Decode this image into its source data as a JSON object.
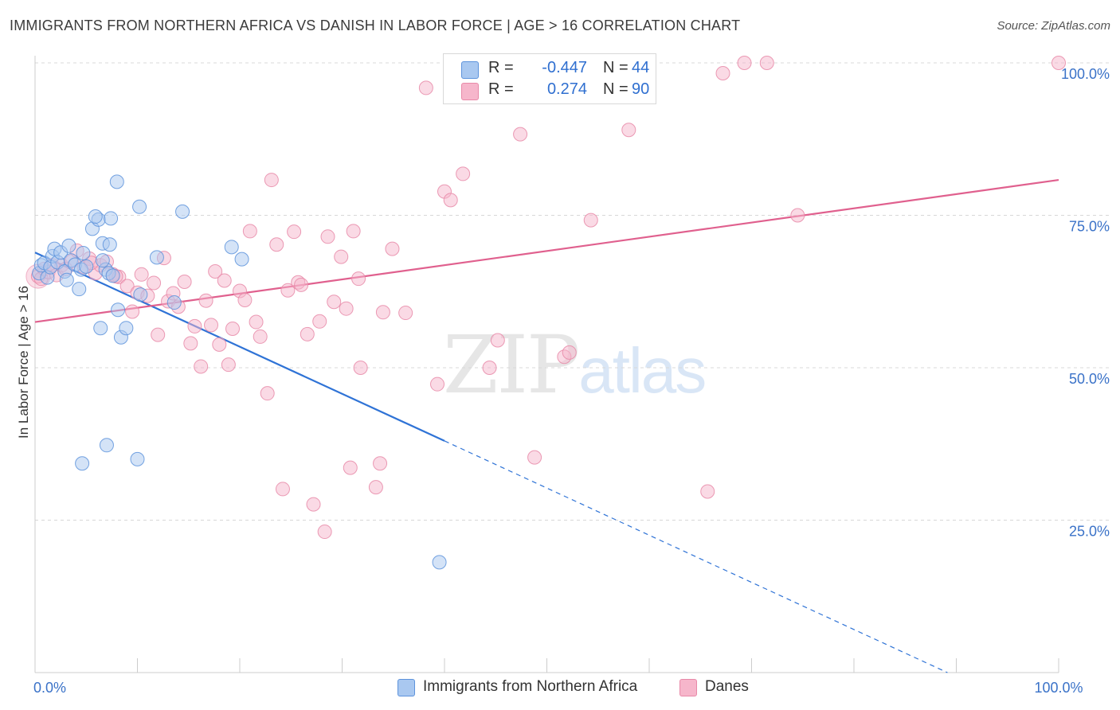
{
  "header": {
    "title": "IMMIGRANTS FROM NORTHERN AFRICA VS DANISH IN LABOR FORCE | AGE > 16 CORRELATION CHART",
    "source": "Source: ZipAtlas.com"
  },
  "watermark": {
    "zip": "ZIP",
    "atlas": "atlas"
  },
  "legend": {
    "rows": [
      {
        "r_label": "R =",
        "r_value": "-0.447",
        "n_label": "N =",
        "n_value": "44",
        "color": "#a9c8f0"
      },
      {
        "r_label": "R =",
        "r_value": "0.274",
        "n_label": "N =",
        "n_value": "90",
        "color": "#f6b6cb"
      }
    ],
    "bottom": [
      {
        "label": "Immigrants from Northern Africa",
        "color": "#a9c8f0"
      },
      {
        "label": "Danes",
        "color": "#f6b6cb"
      }
    ]
  },
  "colors": {
    "blue_fill": "#a9c8f0",
    "blue_stroke": "#5d93dc",
    "blue_line": "#2f73d6",
    "pink_fill": "#f6b6cb",
    "pink_stroke": "#e889a8",
    "pink_line": "#e0608e",
    "axis_label": "#3a72c8",
    "grid": "#d8d8d8"
  },
  "chart_data": {
    "type": "scatter",
    "ylabel": "In Labor Force | Age > 16",
    "xlabel": "",
    "xlim": [
      0,
      100
    ],
    "ylim": [
      0,
      103
    ],
    "x_tick_labels": [
      {
        "x": 0,
        "label": "0.0%"
      },
      {
        "x": 100,
        "label": "100.0%"
      }
    ],
    "y_tick_labels": [
      {
        "y": 25,
        "label": "25.0%"
      },
      {
        "y": 50,
        "label": "50.0%"
      },
      {
        "y": 75,
        "label": "75.0%"
      },
      {
        "y": 100,
        "label": "100.0%"
      }
    ],
    "grid": true,
    "series": [
      {
        "name": "Immigrants from Northern Africa",
        "color": "#a9c8f0",
        "points": [
          [
            0.4,
            65.5
          ],
          [
            0.6,
            66.8
          ],
          [
            0.9,
            67.2
          ],
          [
            1.2,
            64.8
          ],
          [
            1.5,
            66.5
          ],
          [
            1.7,
            68.3
          ],
          [
            1.9,
            69.5
          ],
          [
            2.2,
            67.3
          ],
          [
            2.5,
            68.9
          ],
          [
            2.9,
            65.8
          ],
          [
            3.1,
            64.4
          ],
          [
            3.3,
            70.0
          ],
          [
            3.5,
            67.6
          ],
          [
            3.9,
            66.9
          ],
          [
            4.3,
            62.9
          ],
          [
            4.5,
            66.1
          ],
          [
            4.7,
            68.8
          ],
          [
            5.0,
            66.6
          ],
          [
            5.6,
            72.8
          ],
          [
            4.6,
            34.3
          ],
          [
            6.2,
            74.3
          ],
          [
            5.9,
            74.8
          ],
          [
            6.4,
            56.5
          ],
          [
            6.6,
            70.4
          ],
          [
            6.9,
            66.1
          ],
          [
            7.4,
            74.5
          ],
          [
            7.0,
            37.3
          ],
          [
            8.0,
            80.5
          ],
          [
            7.2,
            65.5
          ],
          [
            7.6,
            65.1
          ],
          [
            8.1,
            59.5
          ],
          [
            8.4,
            55.0
          ],
          [
            8.9,
            56.5
          ],
          [
            7.3,
            70.2
          ],
          [
            10.0,
            35.0
          ],
          [
            10.3,
            62.0
          ],
          [
            10.2,
            76.4
          ],
          [
            11.9,
            68.1
          ],
          [
            13.6,
            60.7
          ],
          [
            14.4,
            75.6
          ],
          [
            19.2,
            69.8
          ],
          [
            20.2,
            67.8
          ],
          [
            39.5,
            18.1
          ],
          [
            6.6,
            67.6
          ]
        ]
      },
      {
        "name": "Danes",
        "color": "#f6b6cb",
        "points": [
          [
            0.3,
            65.0
          ],
          [
            0.6,
            64.6
          ],
          [
            0.9,
            66.2
          ],
          [
            1.3,
            65.7
          ],
          [
            1.7,
            66.8
          ],
          [
            2.1,
            65.2
          ],
          [
            2.6,
            66.8
          ],
          [
            3.0,
            66.2
          ],
          [
            3.6,
            67.5
          ],
          [
            4.1,
            69.2
          ],
          [
            4.8,
            66.5
          ],
          [
            5.3,
            67.9
          ],
          [
            5.9,
            65.5
          ],
          [
            6.4,
            66.8
          ],
          [
            7.0,
            67.4
          ],
          [
            7.6,
            65.3
          ],
          [
            8.2,
            64.9
          ],
          [
            9.0,
            63.4
          ],
          [
            9.5,
            59.2
          ],
          [
            10.0,
            62.3
          ],
          [
            10.4,
            65.3
          ],
          [
            11.0,
            61.8
          ],
          [
            11.6,
            63.9
          ],
          [
            12.0,
            55.4
          ],
          [
            12.6,
            68.0
          ],
          [
            13.0,
            60.9
          ],
          [
            13.5,
            62.2
          ],
          [
            14.0,
            60.0
          ],
          [
            14.6,
            64.1
          ],
          [
            15.2,
            54.0
          ],
          [
            15.6,
            56.8
          ],
          [
            16.2,
            50.2
          ],
          [
            16.7,
            61.0
          ],
          [
            17.2,
            57.0
          ],
          [
            17.6,
            65.8
          ],
          [
            18.0,
            53.8
          ],
          [
            18.5,
            64.3
          ],
          [
            18.9,
            50.5
          ],
          [
            19.3,
            56.4
          ],
          [
            20.0,
            62.6
          ],
          [
            20.5,
            61.1
          ],
          [
            21.0,
            72.4
          ],
          [
            21.6,
            57.5
          ],
          [
            22.0,
            55.1
          ],
          [
            22.7,
            45.8
          ],
          [
            23.1,
            80.8
          ],
          [
            23.6,
            70.2
          ],
          [
            24.2,
            30.1
          ],
          [
            24.7,
            62.7
          ],
          [
            25.3,
            72.3
          ],
          [
            25.7,
            64.0
          ],
          [
            26.0,
            63.6
          ],
          [
            26.6,
            55.5
          ],
          [
            27.2,
            27.6
          ],
          [
            27.8,
            57.6
          ],
          [
            28.3,
            23.1
          ],
          [
            28.6,
            71.5
          ],
          [
            29.2,
            60.8
          ],
          [
            29.9,
            68.2
          ],
          [
            30.4,
            59.7
          ],
          [
            30.8,
            33.6
          ],
          [
            31.1,
            72.4
          ],
          [
            31.6,
            64.6
          ],
          [
            31.8,
            50.0
          ],
          [
            33.3,
            30.4
          ],
          [
            33.7,
            34.3
          ],
          [
            34.0,
            59.1
          ],
          [
            34.9,
            69.5
          ],
          [
            36.2,
            59.0
          ],
          [
            38.2,
            95.9
          ],
          [
            39.3,
            47.3
          ],
          [
            40.0,
            78.9
          ],
          [
            40.6,
            77.5
          ],
          [
            41.8,
            81.8
          ],
          [
            44.4,
            50.0
          ],
          [
            45.2,
            54.5
          ],
          [
            47.4,
            88.3
          ],
          [
            48.8,
            35.3
          ],
          [
            51.7,
            51.8
          ],
          [
            52.2,
            52.5
          ],
          [
            54.3,
            74.2
          ],
          [
            58.0,
            89.0
          ],
          [
            65.7,
            29.7
          ],
          [
            67.2,
            98.3
          ],
          [
            69.3,
            100.0
          ],
          [
            71.5,
            100.0
          ],
          [
            74.5,
            75.0
          ],
          [
            100.0,
            100.0
          ],
          [
            5.5,
            67.2
          ],
          [
            7.9,
            65.0
          ]
        ]
      }
    ],
    "trend_lines": [
      {
        "series": "Immigrants from Northern Africa",
        "x1": 0,
        "y1": 68.9,
        "x2": 40,
        "y2": 38.0,
        "dashed_to": [
          100,
          -8.4
        ]
      },
      {
        "series": "Danes",
        "x1": 0,
        "y1": 57.5,
        "x2": 100,
        "y2": 80.8
      }
    ]
  }
}
